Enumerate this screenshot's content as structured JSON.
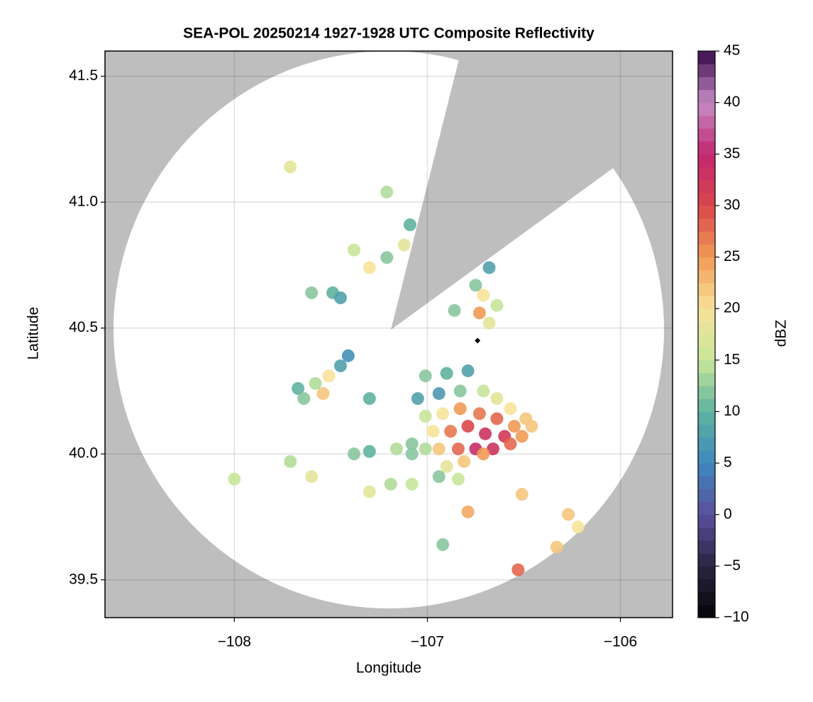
{
  "chart_data": {
    "type": "radar",
    "title": "SEA-POL 20250214 1927-1928 UTC Composite Reflectivity",
    "xlabel": "Longitude",
    "ylabel": "Latitude",
    "xlim": [
      -108.67,
      -105.73
    ],
    "ylim": [
      39.35,
      41.6
    ],
    "xticks": [
      {
        "value": -108,
        "label": "−108"
      },
      {
        "value": -107,
        "label": "−107"
      },
      {
        "value": -106,
        "label": "−106"
      }
    ],
    "yticks": [
      39.5,
      {
        "value": 40,
        "label": "40.0"
      },
      40.5,
      {
        "value": 41,
        "label": "41.0"
      },
      41.5
    ],
    "grid": true,
    "background": "#bebebe",
    "echoes": {
      "x": [
        -107.01,
        -106.9,
        -106.79,
        -107.05,
        -106.94,
        -106.83,
        -106.71,
        -106.64,
        -106.57,
        -106.49,
        -107.01,
        -106.92,
        -106.83,
        -106.73,
        -106.64,
        -106.55,
        -106.46,
        -106.97,
        -106.88,
        -106.79,
        -106.7,
        -106.6,
        -106.51,
        -106.94,
        -106.84,
        -106.75,
        -106.66,
        -106.57,
        -106.9,
        -106.81,
        -106.71,
        -107.01,
        -107.16,
        -107.08,
        -106.94,
        -106.84,
        -107.67,
        -107.58,
        -107.51,
        -107.45,
        -107.54,
        -107.64,
        -107.41,
        -107.3,
        -107.6,
        -107.49,
        -107.38,
        -107.3,
        -107.21,
        -107.12,
        -107.45,
        -107.21,
        -107.09,
        -106.68,
        -106.75,
        -106.71,
        -106.73,
        -106.68,
        -106.86,
        -106.64,
        -107.3,
        -107.19,
        -107.08,
        -107.6,
        -107.38,
        -107.71,
        -106.51,
        -106.79,
        -106.27,
        -106.22,
        -106.33,
        -106.53,
        -107.3,
        -107.08,
        -107.71,
        -108.0,
        -106.92
      ],
      "y": [
        40.31,
        40.32,
        40.33,
        40.22,
        40.24,
        40.25,
        40.25,
        40.22,
        40.18,
        40.14,
        40.15,
        40.16,
        40.18,
        40.16,
        40.14,
        40.11,
        40.11,
        40.09,
        40.09,
        40.11,
        40.08,
        40.07,
        40.07,
        40.02,
        40.02,
        40.02,
        40.02,
        40.04,
        39.95,
        39.97,
        40.0,
        40.02,
        40.02,
        40.04,
        39.91,
        39.9,
        40.26,
        40.28,
        40.31,
        40.35,
        40.24,
        40.22,
        40.39,
        40.22,
        40.64,
        40.64,
        40.81,
        40.74,
        40.78,
        40.83,
        40.62,
        41.04,
        40.91,
        40.74,
        40.67,
        40.63,
        40.56,
        40.52,
        40.57,
        40.59,
        39.85,
        39.88,
        39.88,
        39.91,
        40.0,
        39.97,
        39.84,
        39.77,
        39.76,
        39.71,
        39.63,
        39.54,
        40.01,
        40.0,
        41.14,
        39.9,
        39.64
      ],
      "values": [
        12,
        10,
        8,
        8,
        7,
        12,
        15,
        18,
        20,
        22,
        15,
        20,
        25,
        27,
        28,
        25,
        22,
        20,
        27,
        30,
        33,
        32,
        25,
        22,
        28,
        34,
        33,
        28,
        18,
        22,
        25,
        14,
        14,
        12,
        12,
        15,
        10,
        14,
        20,
        8,
        22,
        12,
        6,
        10,
        12,
        10,
        15,
        20,
        12,
        18,
        8,
        14,
        10,
        8,
        12,
        20,
        25,
        18,
        12,
        15,
        18,
        14,
        15,
        18,
        12,
        14,
        22,
        24,
        22,
        20,
        22,
        28,
        10,
        12,
        18,
        15,
        12
      ]
    },
    "site": {
      "x": -106.74,
      "y": 40.45,
      "color": "#000000"
    },
    "colorbar": {
      "label": "dBZ",
      "lim": [
        -10,
        45
      ],
      "ticks": [
        {
          "value": -10,
          "label": "−10"
        },
        {
          "value": -5,
          "label": "−5"
        },
        0,
        5,
        10,
        15,
        20,
        25,
        30,
        35,
        40,
        45
      ],
      "colors": [
        "#050508",
        "#2b2440",
        "#5a4f9c",
        "#3f87bd",
        "#5fb3a0",
        "#c8e69a",
        "#f7e39a",
        "#f19a55",
        "#d9474b",
        "#c2276f",
        "#c58cc6",
        "#3a0a4a"
      ]
    }
  }
}
